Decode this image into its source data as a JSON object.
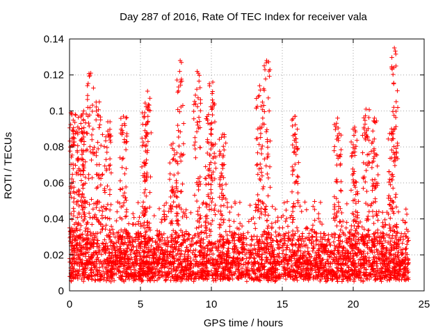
{
  "chart_data": {
    "type": "scatter",
    "title": "Day 287 of 2016, Rate Of TEC Index for receiver vala",
    "xlabel": "GPS time / hours",
    "ylabel": "ROTI / TECUs",
    "xlim": [
      0,
      25
    ],
    "ylim": [
      0,
      0.14
    ],
    "xticks": [
      "0",
      "5",
      "10",
      "15",
      "20",
      "25"
    ],
    "yticks": [
      "0",
      "0.02",
      "0.04",
      "0.06",
      "0.08",
      "0.1",
      "0.12",
      "0.14"
    ],
    "grid": true,
    "marker": "+",
    "marker_color": "#ff0000",
    "x_extent": [
      0.0,
      23.9
    ],
    "baseline_range": [
      0.005,
      0.03
    ],
    "peaks": [
      {
        "x": 0.1,
        "y": 0.099
      },
      {
        "x": 0.4,
        "y": 0.098
      },
      {
        "x": 0.8,
        "y": 0.093
      },
      {
        "x": 1.0,
        "y": 0.1
      },
      {
        "x": 1.5,
        "y": 0.121
      },
      {
        "x": 2.1,
        "y": 0.105
      },
      {
        "x": 2.7,
        "y": 0.094
      },
      {
        "x": 3.8,
        "y": 0.097
      },
      {
        "x": 5.3,
        "y": 0.099
      },
      {
        "x": 5.5,
        "y": 0.111
      },
      {
        "x": 7.3,
        "y": 0.082
      },
      {
        "x": 7.8,
        "y": 0.128
      },
      {
        "x": 9.0,
        "y": 0.122
      },
      {
        "x": 9.8,
        "y": 0.098
      },
      {
        "x": 10.1,
        "y": 0.116
      },
      {
        "x": 10.8,
        "y": 0.087
      },
      {
        "x": 13.4,
        "y": 0.114
      },
      {
        "x": 13.9,
        "y": 0.128
      },
      {
        "x": 15.9,
        "y": 0.097
      },
      {
        "x": 18.9,
        "y": 0.096
      },
      {
        "x": 20.1,
        "y": 0.091
      },
      {
        "x": 20.9,
        "y": 0.101
      },
      {
        "x": 21.5,
        "y": 0.096
      },
      {
        "x": 22.7,
        "y": 0.09
      },
      {
        "x": 22.9,
        "y": 0.135
      }
    ]
  }
}
